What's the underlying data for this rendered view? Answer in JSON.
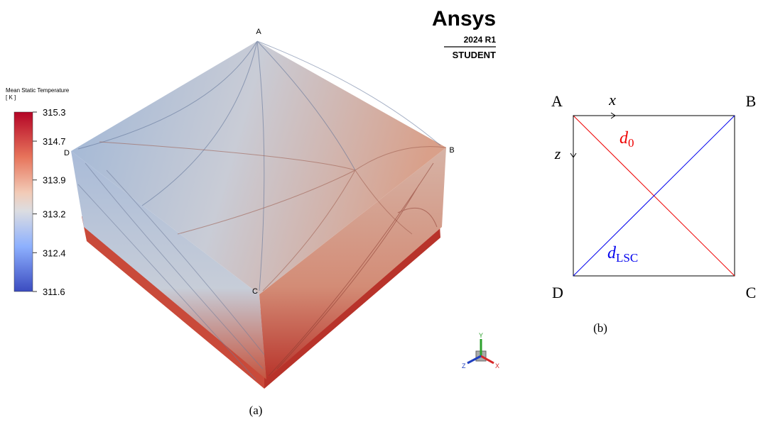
{
  "panel_a": {
    "logo": {
      "brand": "Ansys",
      "version": "2024 R1",
      "edition": "STUDENT"
    },
    "legend": {
      "title": "Mean Static Temperature",
      "unit": "[ K ]",
      "range": [
        311.6,
        315.3
      ],
      "ticks": [
        315.3,
        314.7,
        313.9,
        313.2,
        312.4,
        311.6
      ]
    },
    "corners": {
      "A": "A",
      "B": "B",
      "C": "C",
      "D": "D"
    },
    "triad": {
      "x": "X",
      "y": "Y",
      "z": "Z"
    },
    "caption": "(a)"
  },
  "panel_b": {
    "corners": {
      "A": "A",
      "B": "B",
      "C": "C",
      "D": "D"
    },
    "axes": {
      "x": "x",
      "z": "z"
    },
    "diagonals": {
      "d0": {
        "symbol": "d",
        "subscript": "0"
      },
      "dLSC": {
        "symbol": "d",
        "subscript": "LSC"
      }
    },
    "caption": "(b)"
  }
}
